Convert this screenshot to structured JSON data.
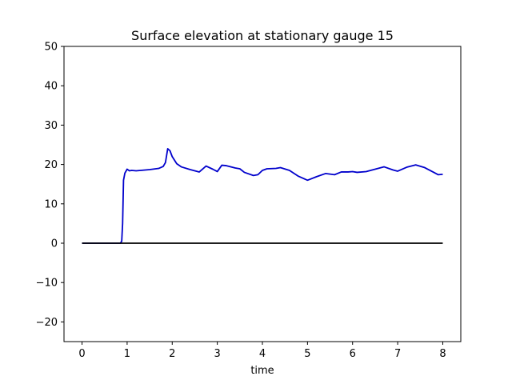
{
  "chart_data": {
    "type": "line",
    "title": "Surface elevation at stationary gauge 15",
    "xlabel": "time",
    "ylabel": "",
    "xlim": [
      -0.4,
      8.4
    ],
    "ylim": [
      -25,
      50
    ],
    "xticks": [
      0,
      1,
      2,
      3,
      4,
      5,
      6,
      7,
      8
    ],
    "yticks": [
      -20,
      -10,
      0,
      10,
      20,
      30,
      40,
      50
    ],
    "grid": false,
    "legend": "none",
    "series": [
      {
        "color": "#0000cc",
        "x": [
          0.0,
          0.85,
          0.88,
          0.9,
          0.92,
          0.95,
          1.0,
          1.05,
          1.1,
          1.2,
          1.3,
          1.5,
          1.7,
          1.8,
          1.85,
          1.9,
          1.95,
          2.0,
          2.1,
          2.2,
          2.4,
          2.6,
          2.75,
          2.9,
          3.0,
          3.1,
          3.2,
          3.4,
          3.5,
          3.6,
          3.8,
          3.9,
          4.0,
          4.1,
          4.3,
          4.4,
          4.6,
          4.8,
          5.0,
          5.2,
          5.4,
          5.6,
          5.75,
          5.9,
          6.0,
          6.1,
          6.3,
          6.5,
          6.7,
          6.9,
          7.0,
          7.2,
          7.4,
          7.6,
          7.8,
          7.9,
          8.0
        ],
        "y": [
          0.0,
          0.0,
          0.5,
          5.0,
          16.0,
          17.8,
          18.8,
          18.4,
          18.5,
          18.4,
          18.5,
          18.7,
          19.0,
          19.5,
          20.5,
          24.0,
          23.5,
          22.0,
          20.2,
          19.4,
          18.7,
          18.1,
          19.6,
          18.8,
          18.2,
          19.8,
          19.7,
          19.1,
          18.9,
          18.0,
          17.2,
          17.4,
          18.5,
          18.9,
          19.0,
          19.2,
          18.5,
          17.0,
          16.0,
          16.9,
          17.7,
          17.4,
          18.1,
          18.1,
          18.2,
          18.0,
          18.2,
          18.8,
          19.4,
          18.6,
          18.3,
          19.3,
          19.9,
          19.2,
          18.0,
          17.4,
          17.5
        ]
      },
      {
        "color": "#000000",
        "x": [
          0.0,
          8.0
        ],
        "y": [
          0.0,
          0.0
        ]
      }
    ]
  }
}
